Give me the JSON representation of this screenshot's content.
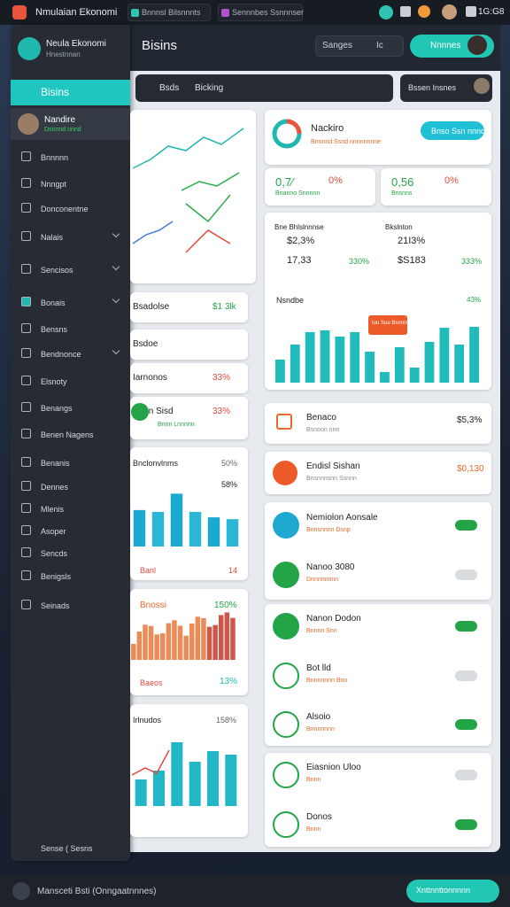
{
  "topbar": {
    "app": "Nmulaian Ekonomi",
    "tabs": [
      "Bnnnsl Bilsnnnts",
      "Sennnbes Ssnnnser"
    ],
    "time": "1G:G8"
  },
  "sidebar": {
    "brand": "Neula Ekonomi",
    "brand_sub": "Hnestnnan",
    "active": "Bisins",
    "user": {
      "name": "Nandire",
      "sub": "Dsnnnd nnnd"
    },
    "items": [
      "Bnnnnn",
      "Nnngpt",
      "Donconentne",
      "Nalais",
      "Sencisos",
      "Bonais",
      "Bensns",
      "Bendnonce",
      "Elsnoty",
      "Benangs",
      "Benen Nagens",
      "Benanis",
      "Dennes",
      "Mlenis",
      "Asoper",
      "Sencds",
      "Benigsls",
      "Seinads"
    ],
    "footer": "Sense ( Sesns"
  },
  "header": {
    "title": "Bisins",
    "search": "Sanges",
    "search_short": "Ic",
    "button": "Nnnnes"
  },
  "filter": {
    "placeholder": "Bsds",
    "label": "Bicking",
    "select": "Bssen Insnes"
  },
  "left_cards": {
    "rows": [
      {
        "label": "Bsadolse",
        "value": "$1 3lk"
      },
      {
        "label": "Bsdoe"
      },
      {
        "label": "Iarnonos",
        "value": "33%"
      },
      {
        "label": "Bnnn Sisd",
        "value": "33%",
        "sub": "Bnnn Lnnnnn"
      }
    ],
    "bar_chart": {
      "title": "Bnclonvlnms",
      "badge": "50%",
      "note": "58%",
      "footer": "Banl",
      "footer_value": "14",
      "values": [
        40,
        38,
        58,
        38,
        32,
        30
      ],
      "ylim": [
        0,
        70
      ]
    },
    "area_card": {
      "title": "Bnossi",
      "value": "150%",
      "footer": "Baeos",
      "footer_value": "13%"
    },
    "bar_chart2": {
      "title": "Irlnudos",
      "value": "158%",
      "values": [
        30,
        40,
        72,
        50,
        62,
        58
      ],
      "ylim": [
        0,
        80
      ]
    }
  },
  "right": {
    "profile": {
      "title": "Nackiro",
      "sub": "Bnnnnd Ssnd nnnnnnnne",
      "button": "Bnso Ssn nnno"
    },
    "stats": [
      {
        "value": "0,7⁄",
        "pct": "0%",
        "sub": "Bnanno Snnnnn"
      },
      {
        "value": "0,56",
        "pct": "0%",
        "sub": "Bnsnns"
      }
    ],
    "summary": [
      {
        "title": "Bne Bhlslnnnse",
        "a": "$2,3%",
        "b": "17,33",
        "c": "330%"
      },
      {
        "title": "Bkslnton",
        "a": "21I3%",
        "b": "$S183",
        "c": "333%"
      }
    ],
    "chart": {
      "title": "Nsndbe",
      "value": "43%",
      "tooltip": "Iuu Suu Bsnnnn",
      "values": [
        26,
        43,
        57,
        59,
        52,
        57,
        35,
        12,
        40,
        17,
        46,
        62,
        43,
        63
      ],
      "ylim": [
        0,
        70
      ]
    },
    "cards": [
      {
        "title": "Benaco",
        "sub": "Bsnoon nnn",
        "value": "$5,3%"
      },
      {
        "title": "Endisl Sishan",
        "sub": "Bnsnnnsnn Ssnnn",
        "value": "$0,130"
      }
    ],
    "list": [
      {
        "title": "Nemiolon Aonsale",
        "sub": "Bnnsnnnn Dsnp"
      },
      {
        "title": "Nanoo 3080",
        "sub": "Dnnnnnnnn"
      },
      {
        "title": "Nanon Dodon",
        "sub": "Bnnnn Snn"
      },
      {
        "title": "Bot lld",
        "sub": "Bnnnnnnn Bno"
      },
      {
        "title": "Alsoio",
        "sub": "Bnnnnnnn"
      },
      {
        "title": "Eiasnion Uloo",
        "sub": "Bnnn"
      },
      {
        "title": "Donos",
        "sub": "Bnnn"
      }
    ]
  },
  "bottombar": {
    "text": "Mansceti Bsti (Onngaatnnnes)",
    "button": "Xnttnnttonnnnn"
  }
}
